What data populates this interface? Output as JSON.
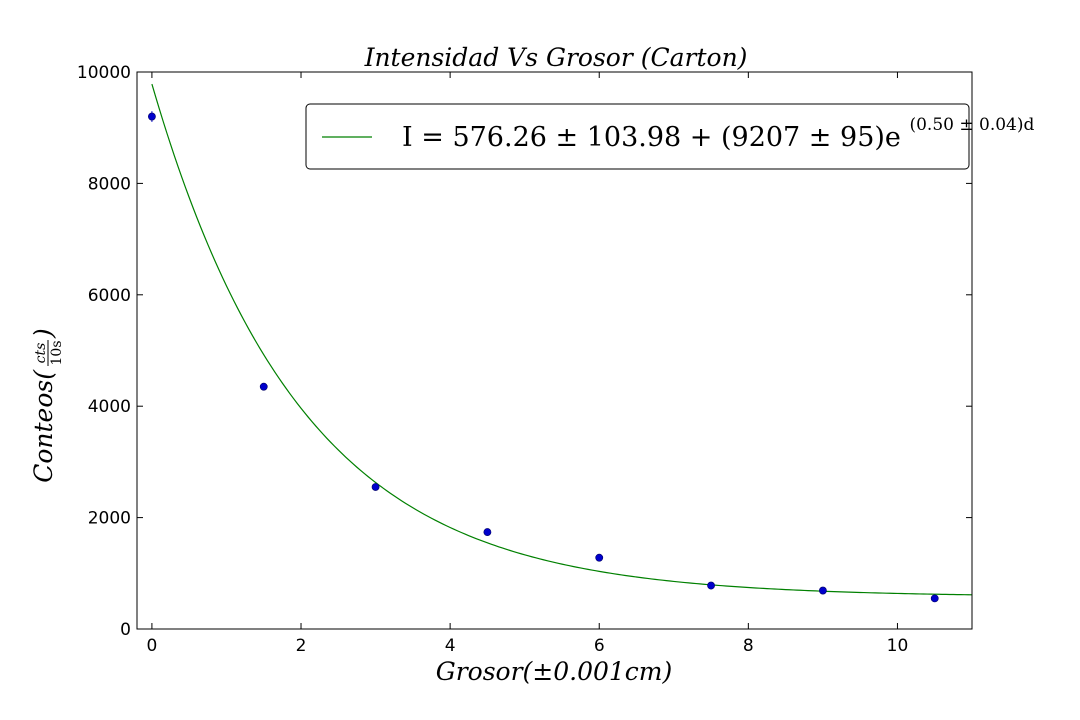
{
  "chart_data": {
    "type": "scatter",
    "title": "Intensidad Vs Grosor (Carton)",
    "xlabel": "Grosor(±0.001cm)",
    "ylabel": "Conteos(cts/10s)",
    "ylabel_parts": {
      "base": "Conteos(",
      "num": "cts",
      "den": "10s",
      "close": ")"
    },
    "xlim": [
      -0.2,
      11
    ],
    "ylim": [
      0,
      10000
    ],
    "x_ticks": [
      0,
      2,
      4,
      6,
      8,
      10
    ],
    "y_ticks": [
      0,
      2000,
      4000,
      6000,
      8000,
      10000
    ],
    "grid": false,
    "legend_position": "top-right",
    "series": [
      {
        "kind": "points",
        "color": "#0000cc",
        "x": [
          0,
          1.5,
          3,
          4.5,
          6,
          7.5,
          9,
          10.5
        ],
        "y": [
          9200,
          4350,
          2550,
          1740,
          1280,
          780,
          690,
          550
        ],
        "yerr": [
          96,
          66,
          50,
          42,
          36,
          28,
          26,
          23
        ]
      },
      {
        "kind": "fit",
        "color": "#008000",
        "name": "I = 576.26 ± 103.98 + (9207 ± 95) e^((0.50 ± 0.04) d)",
        "name_parts": {
          "main": "I = 576.26 ± 103.98 + (9207 ± 95)e",
          "sup": "(0.50 ± 0.04)d"
        },
        "offset": 576.26,
        "amplitude": 9207,
        "rate": 0.5
      }
    ]
  }
}
